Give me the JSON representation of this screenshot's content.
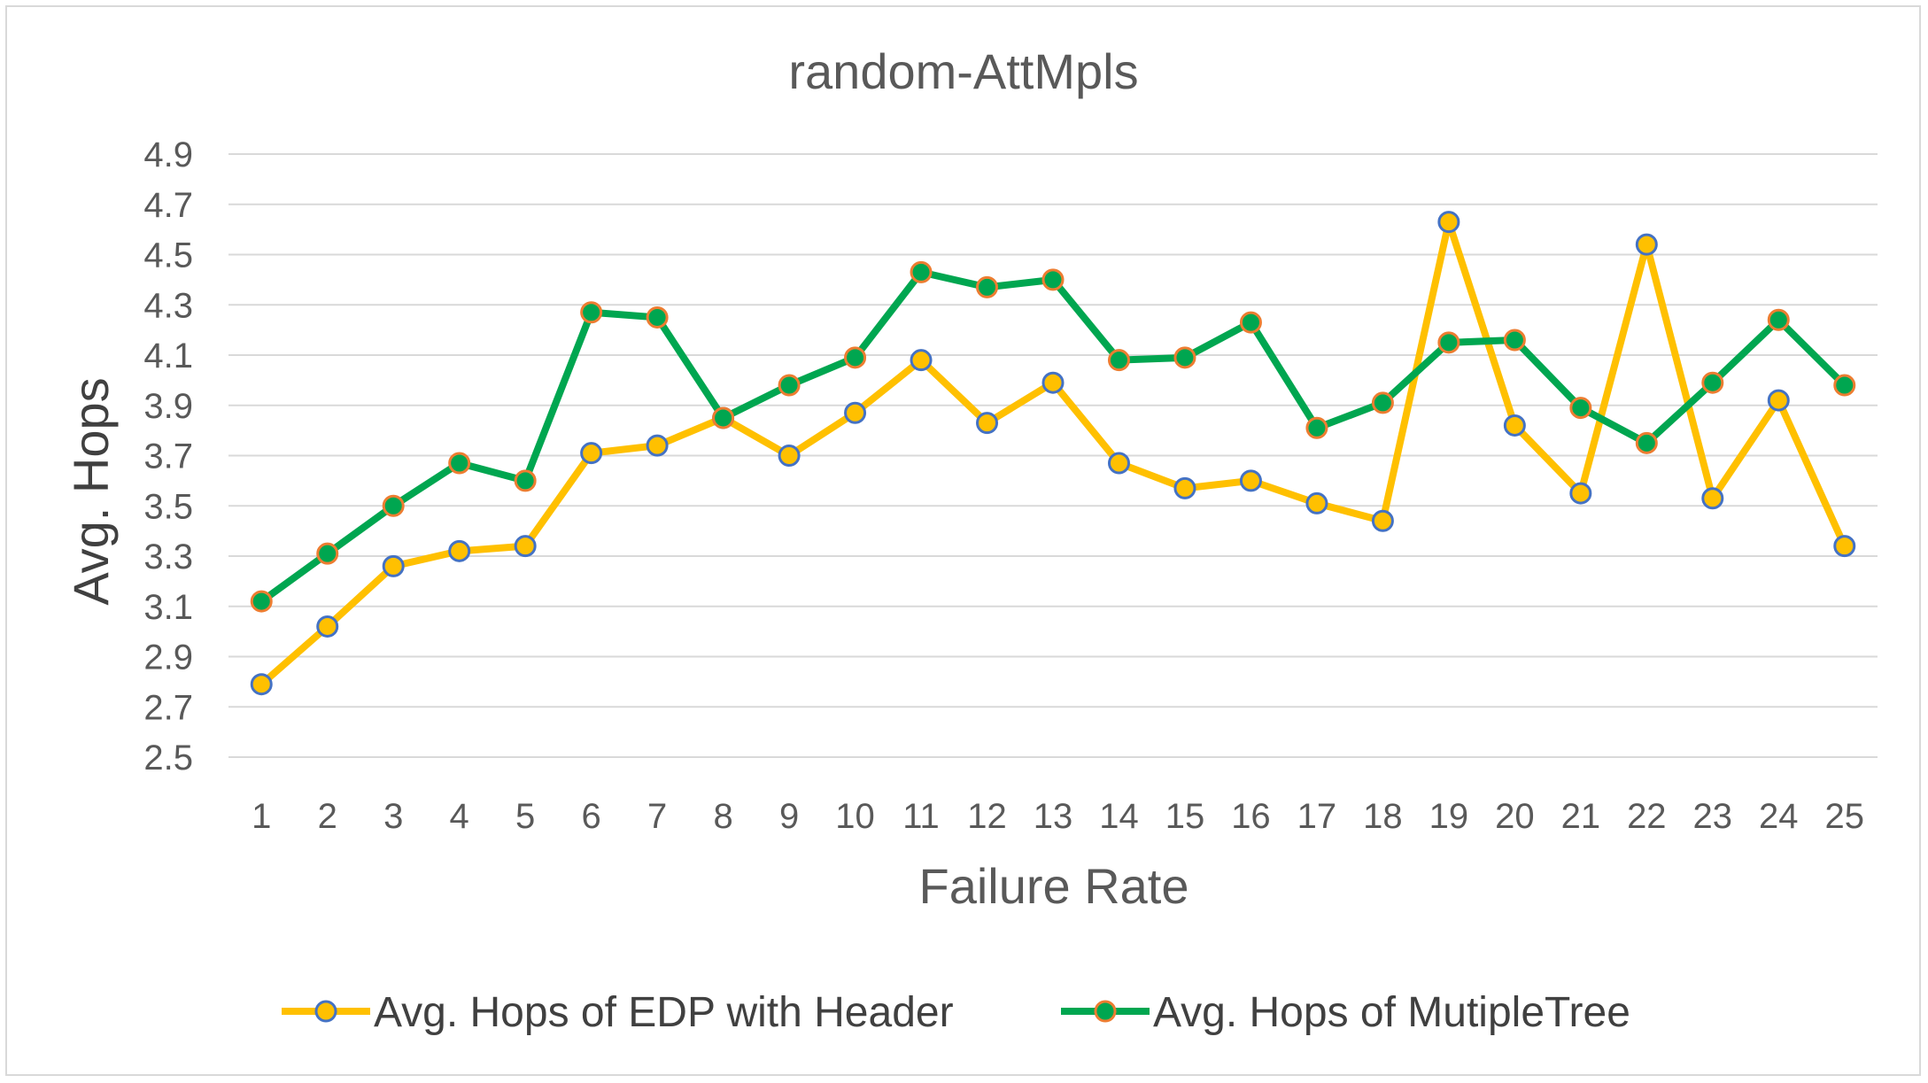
{
  "chart_data": {
    "type": "line",
    "title": "random-AttMpls",
    "xlabel": "Failure Rate",
    "ylabel": "Avg. Hops",
    "categories": [
      "1",
      "2",
      "3",
      "4",
      "5",
      "6",
      "7",
      "8",
      "9",
      "10",
      "11",
      "12",
      "13",
      "14",
      "15",
      "16",
      "17",
      "18",
      "19",
      "20",
      "21",
      "22",
      "23",
      "24",
      "25"
    ],
    "yticks": [
      "2.5",
      "2.7",
      "2.9",
      "3.1",
      "3.3",
      "3.5",
      "3.7",
      "3.9",
      "4.1",
      "4.3",
      "4.5",
      "4.7",
      "4.9"
    ],
    "ylim": [
      2.5,
      4.9
    ],
    "grid": true,
    "legend_position": "bottom",
    "series": [
      {
        "name": "Avg. Hops of EDP with Header",
        "color": "#ffc000",
        "marker_stroke": "#4472c4",
        "values": [
          2.79,
          3.02,
          3.26,
          3.32,
          3.34,
          3.71,
          3.74,
          3.85,
          3.7,
          3.87,
          4.08,
          3.83,
          3.99,
          3.67,
          3.57,
          3.6,
          3.51,
          3.44,
          4.63,
          3.82,
          3.55,
          4.54,
          3.53,
          3.92,
          3.34
        ]
      },
      {
        "name": "Avg. Hops of MutipleTree",
        "color": "#00a650",
        "marker_stroke": "#ed7d31",
        "values": [
          3.12,
          3.31,
          3.5,
          3.67,
          3.6,
          4.27,
          4.25,
          3.85,
          3.98,
          4.09,
          4.43,
          4.37,
          4.4,
          4.08,
          4.09,
          4.23,
          3.81,
          3.91,
          4.15,
          4.16,
          3.89,
          3.75,
          3.99,
          4.24,
          3.98
        ]
      }
    ]
  }
}
